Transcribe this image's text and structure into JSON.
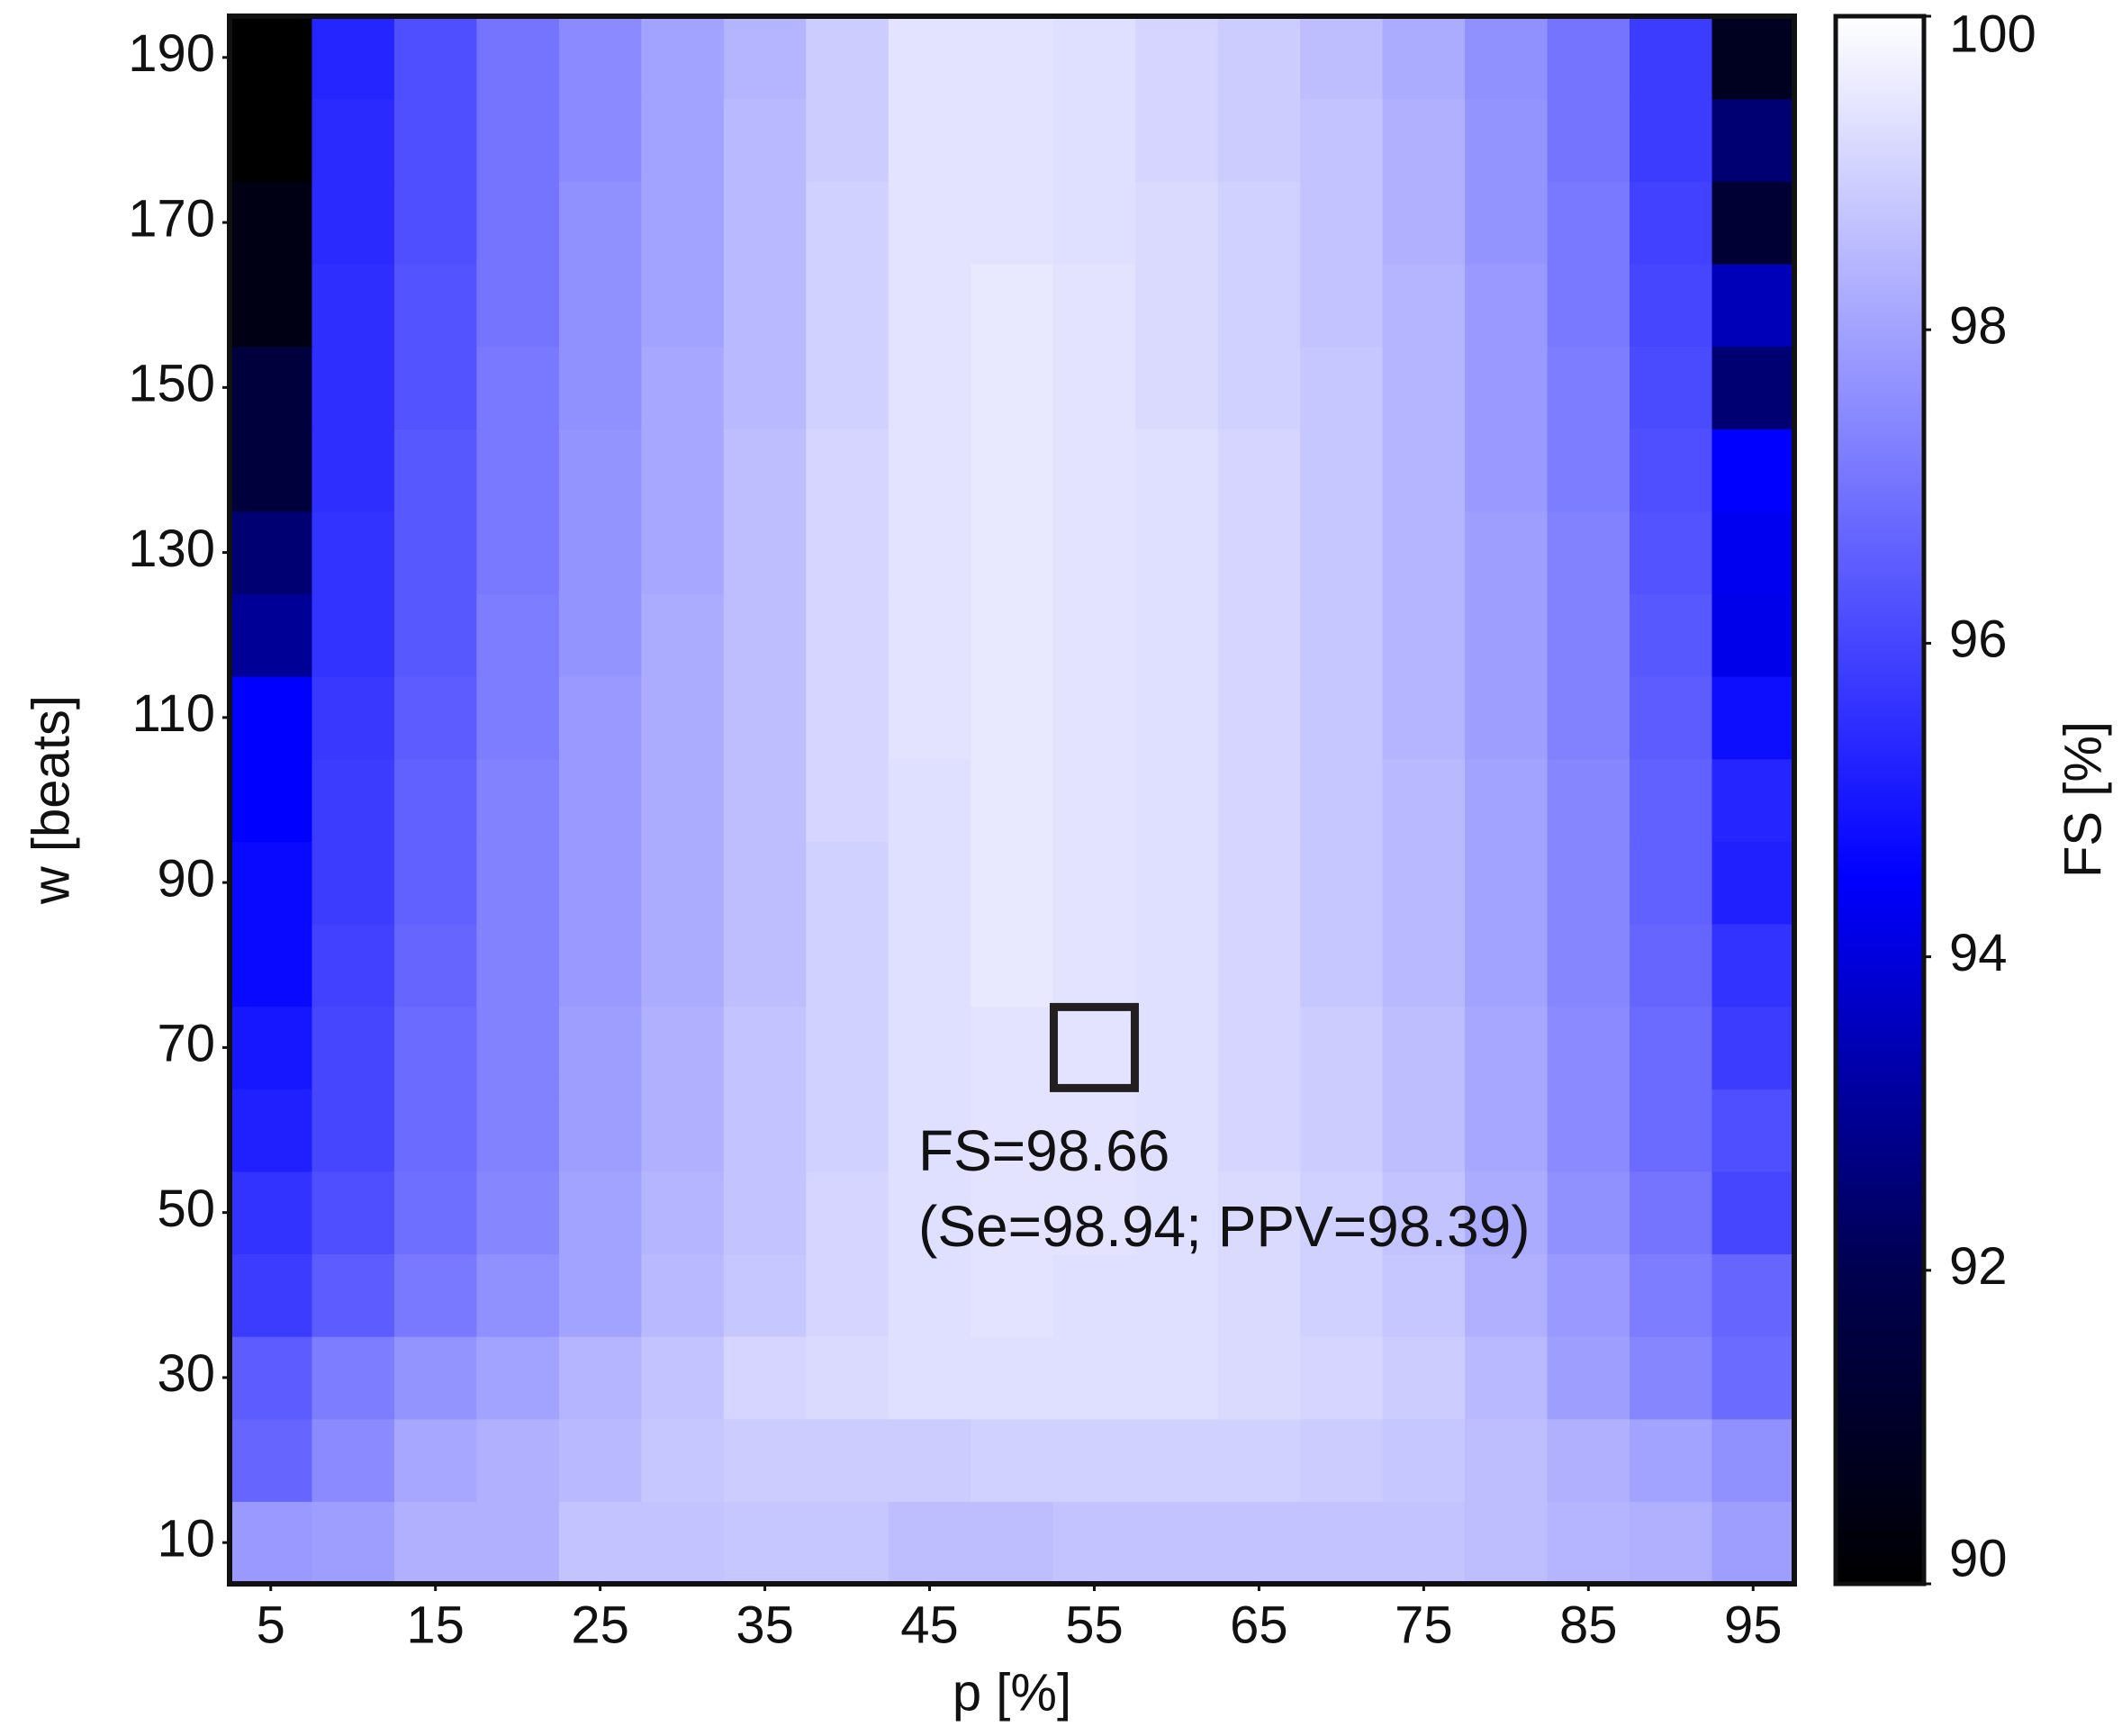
{
  "chart_data": {
    "type": "heatmap",
    "x": [
      5,
      10,
      15,
      20,
      25,
      30,
      35,
      40,
      45,
      50,
      55,
      60,
      65,
      70,
      75,
      80,
      85,
      90,
      95
    ],
    "y": [
      10,
      20,
      30,
      40,
      50,
      60,
      70,
      80,
      90,
      100,
      110,
      120,
      130,
      140,
      150,
      160,
      170,
      180,
      190
    ],
    "values": [
      [
        97.8,
        97.9,
        98.3,
        98.3,
        98.7,
        98.7,
        98.8,
        98.8,
        98.6,
        98.6,
        98.7,
        98.7,
        98.7,
        98.7,
        98.7,
        98.6,
        98.4,
        98.3,
        97.9
      ],
      [
        96.7,
        97.5,
        98.1,
        98.3,
        98.5,
        98.8,
        98.9,
        98.9,
        98.9,
        99.0,
        99.0,
        99.0,
        99.0,
        98.9,
        98.8,
        98.6,
        98.3,
        98.0,
        97.6
      ],
      [
        96.5,
        97.2,
        97.7,
        98.0,
        98.4,
        98.7,
        99.1,
        99.2,
        99.3,
        99.3,
        99.3,
        99.3,
        99.2,
        99.1,
        98.9,
        98.5,
        97.9,
        97.4,
        96.8
      ],
      [
        95.8,
        96.5,
        97.1,
        97.6,
        98.0,
        98.5,
        98.8,
        99.1,
        99.3,
        99.4,
        99.3,
        99.3,
        99.2,
        99.0,
        98.8,
        98.3,
        97.8,
        97.2,
        96.7
      ],
      [
        95.6,
        96.2,
        96.9,
        97.4,
        98.0,
        98.4,
        98.7,
        99.1,
        99.3,
        99.4,
        99.4,
        99.3,
        99.2,
        99.0,
        98.7,
        98.2,
        97.6,
        97.0,
        96.0
      ],
      [
        95.2,
        96.0,
        96.8,
        97.3,
        97.9,
        98.3,
        98.7,
        99.0,
        99.3,
        99.4,
        99.4,
        99.3,
        99.1,
        98.9,
        98.6,
        98.1,
        97.5,
        96.8,
        96.2
      ],
      [
        95.0,
        96.0,
        96.8,
        97.3,
        97.9,
        98.3,
        98.7,
        99.0,
        99.3,
        99.4,
        99.4,
        99.3,
        99.1,
        98.9,
        98.6,
        98.1,
        97.5,
        96.8,
        95.8
      ],
      [
        94.7,
        95.9,
        96.7,
        97.3,
        97.8,
        98.2,
        98.6,
        99.0,
        99.3,
        99.5,
        99.4,
        99.3,
        99.1,
        98.8,
        98.5,
        98.0,
        97.4,
        96.7,
        95.6
      ],
      [
        94.7,
        95.8,
        96.6,
        97.3,
        97.8,
        98.2,
        98.6,
        99.0,
        99.3,
        99.5,
        99.4,
        99.3,
        99.1,
        98.8,
        98.5,
        98.0,
        97.4,
        96.6,
        95.2
      ],
      [
        94.5,
        95.8,
        96.6,
        97.3,
        97.8,
        98.2,
        98.6,
        99.1,
        99.3,
        99.5,
        99.4,
        99.3,
        99.1,
        98.8,
        98.5,
        98.0,
        97.4,
        96.6,
        95.3
      ],
      [
        94.5,
        95.7,
        96.5,
        97.2,
        97.8,
        98.2,
        98.6,
        99.1,
        99.4,
        99.5,
        99.4,
        99.3,
        99.1,
        98.8,
        98.4,
        97.9,
        97.3,
        96.5,
        94.8
      ],
      [
        93.0,
        95.6,
        96.4,
        97.2,
        97.7,
        98.2,
        98.6,
        99.1,
        99.4,
        99.5,
        99.4,
        99.3,
        99.1,
        98.8,
        98.4,
        97.9,
        97.3,
        96.4,
        94.2
      ],
      [
        92.5,
        95.6,
        96.4,
        97.1,
        97.7,
        98.1,
        98.6,
        99.1,
        99.4,
        99.5,
        99.4,
        99.3,
        99.1,
        98.8,
        98.4,
        97.9,
        97.3,
        96.3,
        94.3
      ],
      [
        91.5,
        95.5,
        96.4,
        97.1,
        97.7,
        98.1,
        98.6,
        99.1,
        99.4,
        99.5,
        99.4,
        99.3,
        99.1,
        98.8,
        98.4,
        97.8,
        97.2,
        96.2,
        94.5
      ],
      [
        91.5,
        95.5,
        96.3,
        97.1,
        97.6,
        98.1,
        98.5,
        99.0,
        99.4,
        99.5,
        99.4,
        99.2,
        99.0,
        98.8,
        98.4,
        97.8,
        97.2,
        96.1,
        92.5
      ],
      [
        90.5,
        95.5,
        96.3,
        97.0,
        97.6,
        98.0,
        98.5,
        99.0,
        99.4,
        99.5,
        99.4,
        99.2,
        99.0,
        98.7,
        98.4,
        97.8,
        97.1,
        96.0,
        93.5
      ],
      [
        90.5,
        95.4,
        96.2,
        97.0,
        97.6,
        98.0,
        98.5,
        99.0,
        99.4,
        99.4,
        99.3,
        99.2,
        99.0,
        98.7,
        98.3,
        97.7,
        97.1,
        95.9,
        91.3
      ],
      [
        90.0,
        95.4,
        96.2,
        97.0,
        97.5,
        98.0,
        98.5,
        98.9,
        99.4,
        99.4,
        99.3,
        99.1,
        98.9,
        98.7,
        98.3,
        97.7,
        97.0,
        95.8,
        92.5
      ],
      [
        90.0,
        95.3,
        96.2,
        97.0,
        97.5,
        98.0,
        98.4,
        98.9,
        99.4,
        99.4,
        99.3,
        99.1,
        98.9,
        98.6,
        98.2,
        97.6,
        97.0,
        95.8,
        90.8
      ]
    ],
    "x_label": "p  [%]",
    "y_label": "w [beats]",
    "colorbar_label": "FS [%]",
    "xlim": [
      2.5,
      97.5
    ],
    "ylim": [
      5,
      195
    ],
    "xticks": [
      5,
      15,
      25,
      35,
      45,
      55,
      65,
      75,
      85,
      95
    ],
    "yticks": [
      10,
      30,
      50,
      70,
      90,
      110,
      130,
      150,
      170,
      190
    ],
    "clim": [
      90,
      100
    ],
    "cticks": [
      90,
      92,
      94,
      96,
      98,
      100
    ],
    "colormap": [
      {
        "value": 90,
        "color": "#000000"
      },
      {
        "value": 92,
        "color": "#000050"
      },
      {
        "value": 94.5,
        "color": "#0000ff"
      },
      {
        "value": 100,
        "color": "#ffffff"
      }
    ],
    "marker": {
      "x": 55,
      "y": 70
    },
    "annotation": [
      "FS=98.66",
      "(Se=98.94; PPV=98.39)"
    ]
  }
}
